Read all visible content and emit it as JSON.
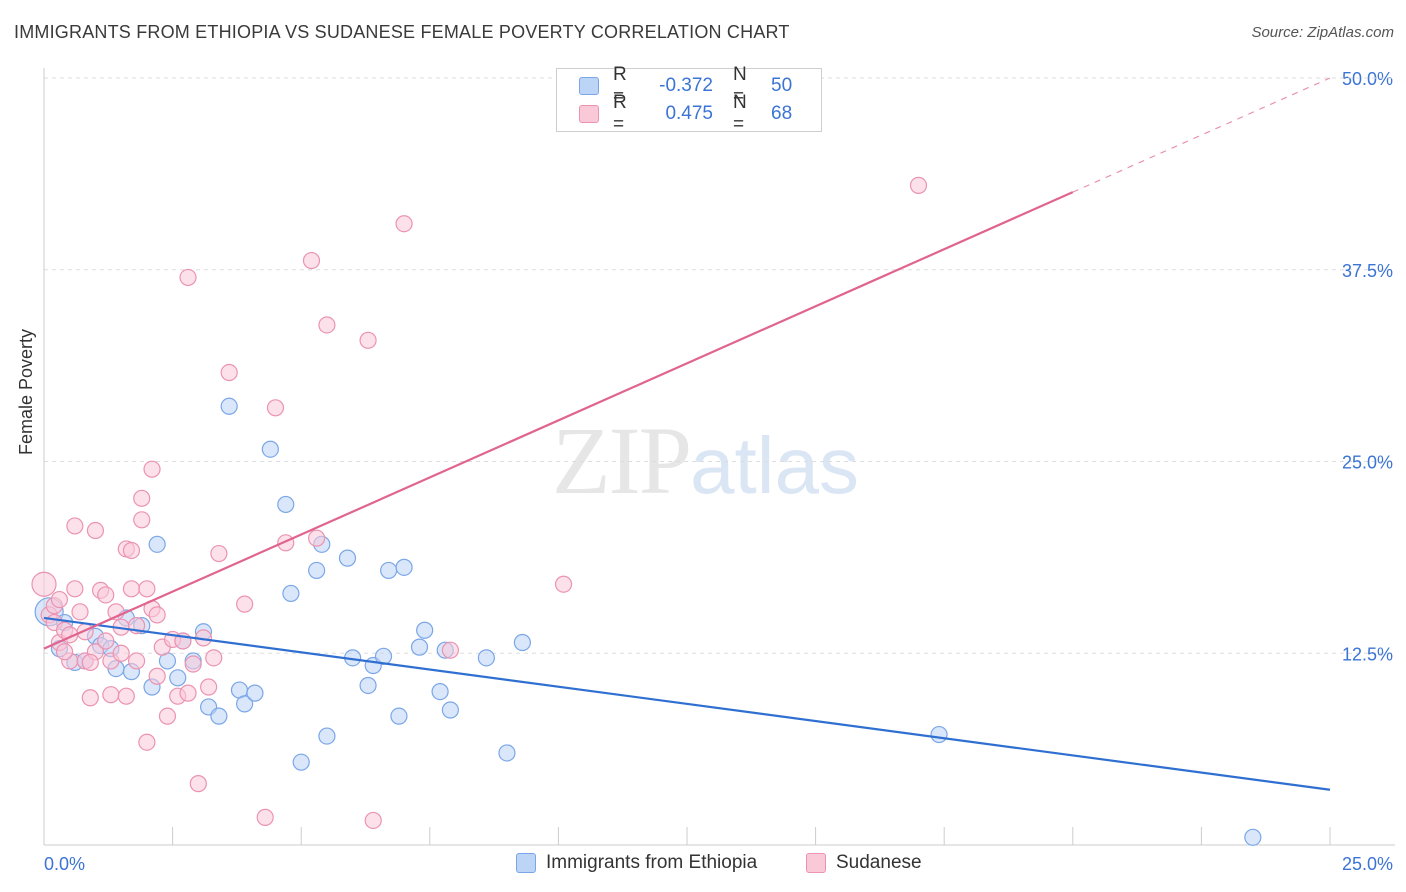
{
  "title": "IMMIGRANTS FROM ETHIOPIA VS SUDANESE FEMALE POVERTY CORRELATION CHART",
  "source": "Source: ZipAtlas.com",
  "watermark": {
    "zip": "ZIP",
    "atlas": "atlas"
  },
  "legend": {
    "rows": [
      {
        "r_label": "R =",
        "r_value": "-0.372",
        "n_label": "N =",
        "n_value": "50"
      },
      {
        "r_label": "R =",
        "r_value": "0.475",
        "n_label": "N =",
        "n_value": "68"
      }
    ]
  },
  "colors": {
    "ethiopia_fill": "#bcd4f5",
    "ethiopia_stroke": "#7aa6e8",
    "ethiopia_line": "#2f6fd1",
    "sudanese_fill": "#f9c9d8",
    "sudanese_stroke": "#eb93b1",
    "sudanese_line": "#e0648e",
    "grid": "#dddddd",
    "axis_text": "#3b74d4"
  },
  "chart_data": {
    "type": "scatter",
    "title": "IMMIGRANTS FROM ETHIOPIA VS SUDANESE FEMALE POVERTY CORRELATION CHART",
    "xlabel": "",
    "ylabel": "Female Poverty",
    "xlim": [
      0,
      25
    ],
    "ylim": [
      0,
      50
    ],
    "x_tick_labels": [
      "0.0%",
      "25.0%"
    ],
    "y_tick_labels": [
      "12.5%",
      "25.0%",
      "37.5%",
      "50.0%"
    ],
    "y_ticks": [
      12.5,
      25,
      37.5,
      50
    ],
    "grid": true,
    "series": [
      {
        "name": "Immigrants from Ethiopia",
        "color_key": "ethiopia",
        "trend": {
          "x": [
            0,
            25
          ],
          "y": [
            14.8,
            3.6
          ],
          "solid_to": 25
        },
        "points": [
          [
            0.1,
            15.2,
            14
          ],
          [
            0.3,
            12.8,
            8
          ],
          [
            0.4,
            14.5,
            8
          ],
          [
            0.6,
            11.9,
            8
          ],
          [
            0.8,
            12.0,
            8
          ],
          [
            1.0,
            13.6,
            8
          ],
          [
            1.1,
            13.0,
            8
          ],
          [
            1.3,
            12.8,
            8
          ],
          [
            1.4,
            11.5,
            8
          ],
          [
            1.6,
            14.8,
            8
          ],
          [
            1.7,
            11.3,
            8
          ],
          [
            1.9,
            14.3,
            8
          ],
          [
            2.1,
            10.3,
            8
          ],
          [
            2.2,
            19.6,
            8
          ],
          [
            2.4,
            12.0,
            8
          ],
          [
            2.6,
            10.9,
            8
          ],
          [
            2.7,
            13.3,
            8
          ],
          [
            2.9,
            12.0,
            8
          ],
          [
            3.1,
            13.9,
            8
          ],
          [
            3.2,
            9.0,
            8
          ],
          [
            3.4,
            8.4,
            8
          ],
          [
            3.6,
            28.6,
            8
          ],
          [
            3.8,
            10.1,
            8
          ],
          [
            3.9,
            9.2,
            8
          ],
          [
            4.1,
            9.9,
            8
          ],
          [
            4.4,
            25.8,
            8
          ],
          [
            4.7,
            22.2,
            8
          ],
          [
            4.8,
            16.4,
            8
          ],
          [
            5.0,
            5.4,
            8
          ],
          [
            5.3,
            17.9,
            8
          ],
          [
            5.4,
            19.6,
            8
          ],
          [
            5.5,
            7.1,
            8
          ],
          [
            5.9,
            18.7,
            8
          ],
          [
            6.0,
            12.2,
            8
          ],
          [
            6.3,
            10.4,
            8
          ],
          [
            6.4,
            11.7,
            8
          ],
          [
            6.6,
            12.3,
            8
          ],
          [
            6.7,
            17.9,
            8
          ],
          [
            6.9,
            8.4,
            8
          ],
          [
            7.0,
            18.1,
            8
          ],
          [
            7.3,
            12.9,
            8
          ],
          [
            7.4,
            14.0,
            8
          ],
          [
            7.7,
            10.0,
            8
          ],
          [
            7.8,
            12.7,
            8
          ],
          [
            7.9,
            8.8,
            8
          ],
          [
            8.6,
            12.2,
            8
          ],
          [
            9.0,
            6.0,
            8
          ],
          [
            9.3,
            13.2,
            8
          ],
          [
            17.4,
            7.2,
            8
          ],
          [
            23.5,
            0.5,
            8
          ]
        ]
      },
      {
        "name": "Sudanese",
        "color_key": "sudanese",
        "trend": {
          "x": [
            0,
            25
          ],
          "y": [
            12.8,
            50.0
          ],
          "solid_to": 20.0
        },
        "points": [
          [
            0.0,
            17.0,
            12
          ],
          [
            0.1,
            15.0,
            8
          ],
          [
            0.2,
            14.5,
            8
          ],
          [
            0.3,
            13.2,
            8
          ],
          [
            0.4,
            14.0,
            8
          ],
          [
            0.5,
            12.0,
            8
          ],
          [
            0.6,
            16.7,
            8
          ],
          [
            0.6,
            20.8,
            8
          ],
          [
            0.7,
            15.2,
            8
          ],
          [
            0.8,
            13.9,
            8
          ],
          [
            0.8,
            12.0,
            8
          ],
          [
            0.9,
            9.6,
            8
          ],
          [
            1.0,
            12.6,
            8
          ],
          [
            1.0,
            20.5,
            8
          ],
          [
            1.1,
            16.6,
            8
          ],
          [
            1.2,
            16.3,
            8
          ],
          [
            1.3,
            12.0,
            8
          ],
          [
            1.3,
            9.8,
            8
          ],
          [
            1.4,
            15.2,
            8
          ],
          [
            1.5,
            14.2,
            8
          ],
          [
            1.5,
            12.5,
            8
          ],
          [
            1.6,
            9.7,
            8
          ],
          [
            1.6,
            19.3,
            8
          ],
          [
            1.7,
            19.2,
            8
          ],
          [
            1.7,
            16.7,
            8
          ],
          [
            1.8,
            14.3,
            8
          ],
          [
            1.9,
            22.6,
            8
          ],
          [
            1.9,
            21.2,
            8
          ],
          [
            2.0,
            16.7,
            8
          ],
          [
            2.0,
            6.7,
            8
          ],
          [
            2.1,
            24.5,
            8
          ],
          [
            2.1,
            15.4,
            8
          ],
          [
            2.2,
            15.0,
            8
          ],
          [
            2.3,
            12.9,
            8
          ],
          [
            2.4,
            8.4,
            8
          ],
          [
            2.5,
            13.4,
            8
          ],
          [
            2.6,
            9.7,
            8
          ],
          [
            2.7,
            13.3,
            8
          ],
          [
            2.8,
            9.9,
            8
          ],
          [
            2.8,
            37.0,
            8
          ],
          [
            2.9,
            11.8,
            8
          ],
          [
            3.0,
            4.0,
            8
          ],
          [
            3.2,
            10.3,
            8
          ],
          [
            3.3,
            12.2,
            8
          ],
          [
            3.4,
            19.0,
            8
          ],
          [
            3.6,
            30.8,
            8
          ],
          [
            3.9,
            15.7,
            8
          ],
          [
            4.3,
            1.8,
            8
          ],
          [
            4.5,
            28.5,
            8
          ],
          [
            4.7,
            19.7,
            8
          ],
          [
            5.2,
            38.1,
            8
          ],
          [
            5.3,
            20.0,
            8
          ],
          [
            5.5,
            33.9,
            8
          ],
          [
            6.3,
            32.9,
            8
          ],
          [
            6.4,
            1.6,
            8
          ],
          [
            7.0,
            40.5,
            8
          ],
          [
            7.9,
            12.7,
            8
          ],
          [
            10.1,
            17.0,
            8
          ],
          [
            17.0,
            43.0,
            8
          ],
          [
            0.2,
            15.6,
            8
          ],
          [
            0.5,
            13.7,
            8
          ],
          [
            0.9,
            11.9,
            8
          ],
          [
            1.2,
            13.3,
            8
          ],
          [
            1.8,
            12.0,
            8
          ],
          [
            2.2,
            11.0,
            8
          ],
          [
            0.4,
            12.6,
            8
          ],
          [
            3.1,
            13.5,
            8
          ],
          [
            0.3,
            16.0,
            8
          ]
        ]
      }
    ]
  }
}
